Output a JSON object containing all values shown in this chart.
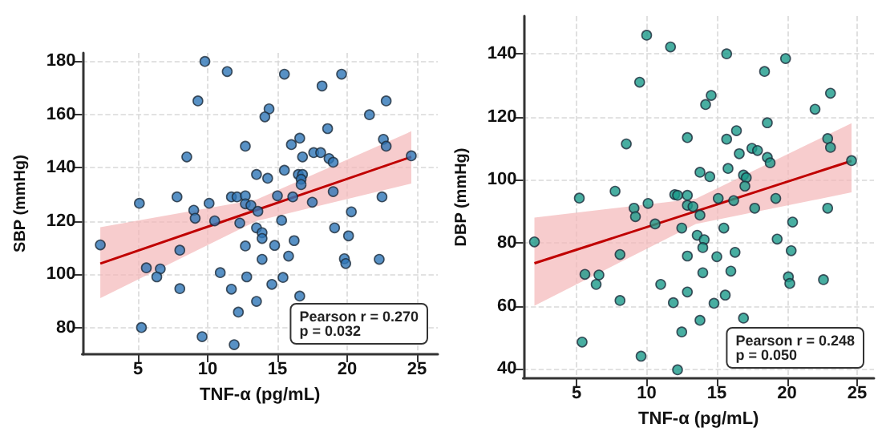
{
  "chart_data": [
    {
      "type": "scatter",
      "xlabel": "TNF-α (pg/mL)",
      "ylabel": "SBP (mmHg)",
      "xlim": [
        1,
        26.5
      ],
      "xticks": [
        5,
        10,
        15,
        20,
        25
      ],
      "ylim": [
        70,
        183
      ],
      "yticks": [
        80,
        100,
        120,
        140,
        160,
        180
      ],
      "grid": true,
      "annotations": [
        "Pearson r = 0.270\np = 0.032"
      ],
      "series": [
        {
          "marker": "circle",
          "color": "#2e75b6",
          "x": [
            2.3,
            5.1,
            5.25,
            5.6,
            6.6,
            6.35,
            7.8,
            8.5,
            8.0,
            8.0,
            9.0,
            9.1,
            9.3,
            9.8,
            9.6,
            10.1,
            10.5,
            10.9,
            11.4,
            11.7,
            11.7,
            15.5,
            19.6,
            18.2,
            22.8,
            21.6,
            14.4,
            14.1,
            18.6,
            16.0,
            16.6,
            12.7,
            16.8,
            17.6,
            18.1,
            18.7,
            19.0,
            22.6,
            22.8,
            24.6,
            13.5,
            14.3,
            15.5,
            16.5,
            16.8,
            16.7,
            16.7,
            12.1,
            12.7,
            12.7,
            13.1,
            13.6,
            15.0,
            16.1,
            17.5,
            19.0,
            22.5,
            12.3,
            15.3,
            13.5,
            13.9,
            13.9,
            20.3,
            19.1,
            20.1,
            12.7,
            14.8,
            16.2,
            13.9,
            15.8,
            19.8,
            19.9,
            22.3,
            12.8,
            14.6,
            15.4,
            16.6,
            13.5,
            12.2,
            11.9
          ],
          "values": [
            111,
            126.6,
            80,
            102.4,
            102,
            99,
            129,
            144,
            109,
            94.6,
            124,
            121,
            165,
            179.8,
            76.6,
            126.6,
            120,
            100.6,
            176,
            94.4,
            129,
            175,
            175,
            170.6,
            165,
            159.8,
            162,
            159,
            154.6,
            148.6,
            151,
            148,
            144,
            145.6,
            145.6,
            143.4,
            142,
            150.6,
            148,
            144.4,
            137.4,
            136,
            139,
            137.4,
            137.4,
            135.6,
            133.6,
            129,
            129.4,
            126.4,
            125.8,
            123.6,
            129.4,
            129,
            127,
            131,
            129,
            119.2,
            120.2,
            117.4,
            115.6,
            113.4,
            123.4,
            117.4,
            114.4,
            110.6,
            110.8,
            112.6,
            105.6,
            106.8,
            105.8,
            104,
            105.6,
            99,
            96.2,
            98.8,
            91.8,
            89.8,
            85.8,
            73.6
          ]
        },
        {
          "type": "line",
          "marker": "none",
          "color": "#c00000",
          "line_style": "solid",
          "x": [
            2.3,
            13.5,
            24.6
          ],
          "values": [
            104,
            124.1,
            144
          ],
          "lower": [
            91,
            120,
            134
          ],
          "upper": [
            117.6,
            128,
            153.6
          ]
        }
      ]
    },
    {
      "type": "scatter",
      "xlabel": "TNF-α (pg/mL)",
      "ylabel": "DBP (mmHg)",
      "xlim": [
        1.2,
        26.2
      ],
      "xticks": [
        5,
        10,
        15,
        20,
        25
      ],
      "ylim": [
        37,
        152
      ],
      "yticks": [
        40,
        60,
        80,
        100,
        120,
        140
      ],
      "grid": true,
      "annotations": [
        "Pearson r = 0.248\np = 0.050"
      ],
      "series": [
        {
          "marker": "circle",
          "color": "#1a9a8a",
          "x": [
            2.0,
            5.2,
            5.4,
            5.6,
            6.6,
            6.4,
            7.75,
            8.55,
            8.1,
            8.1,
            9.1,
            9.2,
            9.5,
            10.0,
            9.6,
            10.1,
            10.6,
            11.0,
            11.7,
            11.9,
            12.0,
            12.2,
            15.7,
            19.9,
            18.4,
            23.1,
            22.0,
            14.6,
            14.2,
            18.6,
            16.4,
            15.7,
            22.9,
            23.1,
            12.9,
            16.6,
            17.5,
            17.9,
            18.6,
            18.8,
            24.6,
            13.8,
            14.5,
            15.8,
            16.9,
            17.1,
            17.0,
            12.2,
            12.9,
            15.1,
            16.2,
            19.2,
            22.9,
            12.9,
            13.3,
            13.8,
            17.7,
            12.5,
            15.5,
            20.4,
            13.6,
            14.1,
            14.0,
            19.3,
            12.9,
            15.0,
            16.3,
            20.3,
            14.0,
            16.0,
            20.1,
            20.2,
            22.6,
            12.9,
            14.8,
            15.6,
            16.9,
            13.8,
            12.5
          ],
          "values": [
            80.3,
            94.2,
            48.5,
            70,
            69.8,
            66.8,
            96.4,
            111.4,
            76.3,
            61.7,
            91,
            88.3,
            131,
            145.9,
            44,
            92.5,
            86,
            66.8,
            142.2,
            61,
            95.3,
            39.7,
            140,
            138.5,
            134.4,
            127.5,
            122.4,
            126.8,
            123.9,
            118.1,
            115.6,
            112.9,
            113.1,
            110.3,
            113.4,
            108.3,
            110,
            109.3,
            107.1,
            105.4,
            106.1,
            102.4,
            101,
            103.6,
            101.5,
            100.7,
            98,
            95.1,
            95.1,
            94.1,
            93.4,
            94.1,
            91,
            91.9,
            91.5,
            88.8,
            91,
            84.7,
            84.7,
            86.6,
            82.4,
            81,
            78.5,
            81.2,
            75.8,
            75.6,
            77,
            77.5,
            70.5,
            71,
            69.2,
            67.1,
            68.3,
            64.4,
            60.8,
            63.4,
            56.1,
            55.4,
            51.7
          ]
        },
        {
          "type": "line",
          "marker": "none",
          "color": "#c00000",
          "line_style": "solid",
          "x": [
            2.0,
            13.5,
            24.6
          ],
          "values": [
            73.5,
            90,
            106
          ],
          "lower": [
            60,
            86,
            96
          ],
          "upper": [
            88,
            94,
            118
          ]
        }
      ]
    }
  ]
}
